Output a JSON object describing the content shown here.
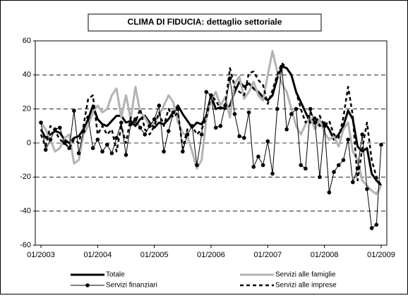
{
  "chart_data": {
    "type": "line",
    "title": "CLIMA DI FIDUCIA: dettaglio settoriale",
    "categories": [
      "01/2003",
      null,
      null,
      null,
      null,
      null,
      null,
      null,
      null,
      null,
      null,
      null,
      "01/2004",
      null,
      null,
      null,
      null,
      null,
      null,
      null,
      null,
      null,
      null,
      null,
      "01/2005",
      null,
      null,
      null,
      null,
      null,
      null,
      null,
      null,
      null,
      null,
      null,
      "01/2006",
      null,
      null,
      null,
      null,
      null,
      null,
      null,
      null,
      null,
      null,
      null,
      "01/2007",
      null,
      null,
      null,
      null,
      null,
      null,
      null,
      null,
      null,
      null,
      null,
      "01/2008",
      null,
      null,
      null,
      null,
      null,
      null,
      null,
      null,
      null,
      null,
      null,
      "01/2009"
    ],
    "ylim": [
      -60,
      60
    ],
    "yticks": [
      -60,
      -40,
      -20,
      0,
      20,
      40,
      60
    ],
    "grid": true,
    "legend": "bottom",
    "series": [
      {
        "name": "Totale",
        "color": "#000000",
        "style": "thick",
        "values": [
          8,
          3,
          5,
          7,
          6,
          2,
          0,
          3,
          4,
          8,
          14,
          22,
          14,
          11,
          10,
          13,
          16,
          16,
          12,
          13,
          10,
          14,
          16,
          12,
          9,
          12,
          11,
          14,
          18,
          22,
          17,
          13,
          9,
          12,
          11,
          16,
          28,
          20,
          21,
          20,
          22,
          30,
          36,
          33,
          35,
          32,
          30,
          27,
          25,
          28,
          38,
          45,
          44,
          40,
          30,
          24,
          18,
          12,
          15,
          10,
          12,
          8,
          2,
          5,
          10,
          19,
          14,
          -2,
          -5,
          -3,
          -18,
          -22,
          -25
        ]
      },
      {
        "name": "Servizi alle famiglie",
        "color": "#b3b3b3",
        "style": "thick",
        "values": [
          12,
          8,
          2,
          -5,
          -3,
          3,
          5,
          -12,
          -10,
          5,
          10,
          18,
          22,
          18,
          20,
          28,
          32,
          15,
          28,
          14,
          33,
          18,
          15,
          10,
          12,
          16,
          22,
          28,
          24,
          12,
          6,
          4,
          -5,
          -15,
          -10,
          14,
          25,
          30,
          22,
          27,
          15,
          35,
          39,
          26,
          30,
          36,
          28,
          25,
          40,
          54,
          42,
          35,
          30,
          20,
          10,
          5,
          11,
          15,
          8,
          14,
          6,
          2,
          4,
          -2,
          8,
          12,
          -5,
          -10,
          -22,
          -25,
          -28,
          -30,
          -25
        ]
      },
      {
        "name": "Servizi finanziari",
        "color": "#000000",
        "style": "markers",
        "values": [
          12,
          -4,
          2,
          8,
          9,
          0,
          -3,
          19,
          -6,
          7,
          15,
          -3,
          2,
          -5,
          -1,
          -6,
          3,
          12,
          -7,
          11,
          14,
          9,
          5,
          10,
          14,
          22,
          -5,
          7,
          18,
          20,
          -5,
          5,
          10,
          -13,
          5,
          30,
          28,
          9,
          10,
          22,
          38,
          17,
          4,
          3,
          18,
          -14,
          -8,
          -13,
          1,
          -18,
          20,
          45,
          8,
          17,
          20,
          -13,
          -15,
          20,
          12,
          -20,
          10,
          -29,
          -17,
          -13,
          -10,
          2,
          -23,
          -15,
          5,
          -27,
          -50,
          -48,
          -1
        ]
      },
      {
        "name": "Servizi alle imprese",
        "color": "#000000",
        "style": "dashed",
        "values": [
          5,
          -2,
          10,
          7,
          2,
          0,
          -3,
          2,
          0,
          10,
          26,
          28,
          5,
          10,
          5,
          8,
          -5,
          10,
          0,
          15,
          12,
          20,
          8,
          5,
          10,
          18,
          10,
          20,
          15,
          18,
          -3,
          8,
          10,
          5,
          8,
          15,
          28,
          25,
          20,
          22,
          44,
          33,
          30,
          28,
          41,
          42,
          37,
          34,
          23,
          31,
          40,
          47,
          44,
          40,
          30,
          20,
          12,
          18,
          12,
          16,
          10,
          13,
          5,
          3,
          15,
          33,
          16,
          -22,
          -3,
          12,
          -10,
          -20,
          -25
        ]
      }
    ]
  }
}
